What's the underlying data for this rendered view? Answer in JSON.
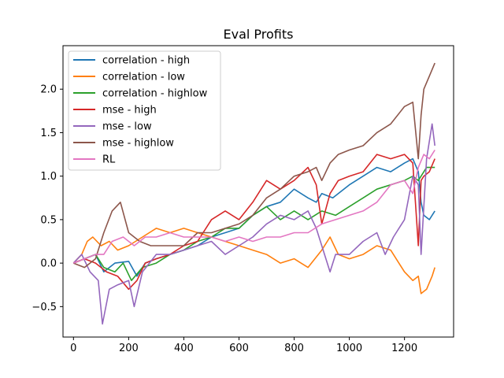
{
  "chart_data": {
    "type": "line",
    "title": "Eval Profits",
    "xlabel": "",
    "ylabel": "",
    "xlim": [
      -38,
      1378
    ],
    "ylim": [
      -0.85,
      2.5
    ],
    "grid": false,
    "legend_position": "upper-left",
    "x_ticks": [
      0,
      200,
      400,
      600,
      800,
      1000,
      1200
    ],
    "x_tick_labels": [
      "0",
      "200",
      "400",
      "600",
      "800",
      "1000",
      "1200"
    ],
    "y_ticks": [
      -0.5,
      0.0,
      0.5,
      1.0,
      1.5,
      2.0
    ],
    "y_tick_labels": [
      "−0.5",
      "0.0",
      "0.5",
      "1.0",
      "1.5",
      "2.0"
    ],
    "series": [
      {
        "name": "correlation - high",
        "color": "#1f77b4",
        "x": [
          0,
          40,
          80,
          110,
          150,
          200,
          230,
          260,
          300,
          350,
          400,
          450,
          500,
          550,
          600,
          650,
          700,
          750,
          800,
          850,
          880,
          900,
          940,
          1000,
          1050,
          1100,
          1150,
          1200,
          1230,
          1250,
          1260,
          1270,
          1290,
          1310
        ],
        "y": [
          0.0,
          0.05,
          0.1,
          -0.1,
          0.0,
          0.02,
          -0.15,
          0.0,
          0.05,
          0.1,
          0.15,
          0.2,
          0.3,
          0.35,
          0.4,
          0.55,
          0.65,
          0.7,
          0.85,
          0.75,
          0.7,
          0.8,
          0.75,
          0.9,
          1.0,
          1.1,
          1.05,
          1.15,
          1.2,
          1.05,
          0.7,
          0.55,
          0.5,
          0.6
        ]
      },
      {
        "name": "correlation - low",
        "color": "#ff7f0e",
        "x": [
          0,
          30,
          50,
          70,
          100,
          130,
          160,
          200,
          250,
          300,
          350,
          400,
          450,
          500,
          550,
          600,
          650,
          700,
          750,
          800,
          850,
          900,
          930,
          960,
          1000,
          1050,
          1100,
          1150,
          1200,
          1230,
          1250,
          1260,
          1280,
          1300,
          1310
        ],
        "y": [
          0.0,
          0.1,
          0.25,
          0.3,
          0.2,
          0.25,
          0.15,
          0.2,
          0.3,
          0.4,
          0.35,
          0.4,
          0.35,
          0.3,
          0.25,
          0.2,
          0.15,
          0.1,
          0.0,
          0.05,
          -0.05,
          0.15,
          0.3,
          0.1,
          0.05,
          0.1,
          0.2,
          0.15,
          -0.1,
          -0.2,
          -0.15,
          -0.35,
          -0.3,
          -0.15,
          -0.05
        ]
      },
      {
        "name": "correlation - highlow",
        "color": "#2ca02c",
        "x": [
          0,
          40,
          80,
          110,
          150,
          180,
          210,
          250,
          300,
          350,
          400,
          450,
          500,
          550,
          600,
          650,
          700,
          750,
          800,
          850,
          900,
          950,
          1000,
          1050,
          1100,
          1150,
          1200,
          1230,
          1250,
          1260,
          1280,
          1310
        ],
        "y": [
          0.0,
          0.05,
          0.1,
          -0.05,
          -0.1,
          0.0,
          -0.2,
          -0.05,
          0.0,
          0.1,
          0.15,
          0.25,
          0.3,
          0.4,
          0.4,
          0.55,
          0.65,
          0.5,
          0.6,
          0.5,
          0.6,
          0.55,
          0.65,
          0.75,
          0.85,
          0.9,
          0.95,
          1.0,
          0.95,
          1.0,
          1.1,
          1.1
        ]
      },
      {
        "name": "mse - high",
        "color": "#d62728",
        "x": [
          0,
          40,
          80,
          120,
          160,
          200,
          230,
          260,
          300,
          350,
          400,
          450,
          500,
          550,
          600,
          650,
          700,
          750,
          800,
          850,
          880,
          900,
          930,
          960,
          1000,
          1050,
          1100,
          1150,
          1200,
          1230,
          1250,
          1260,
          1270,
          1290,
          1310
        ],
        "y": [
          0.0,
          0.05,
          0.0,
          -0.1,
          -0.15,
          -0.3,
          -0.2,
          0.0,
          0.05,
          0.1,
          0.2,
          0.25,
          0.5,
          0.6,
          0.5,
          0.7,
          0.95,
          0.85,
          0.95,
          1.1,
          0.9,
          0.45,
          0.8,
          0.95,
          1.0,
          1.05,
          1.25,
          1.2,
          1.25,
          1.15,
          0.2,
          0.95,
          1.0,
          1.05,
          1.2
        ]
      },
      {
        "name": "mse - low",
        "color": "#9467bd",
        "x": [
          0,
          30,
          60,
          90,
          105,
          130,
          160,
          200,
          220,
          250,
          300,
          350,
          400,
          450,
          500,
          550,
          600,
          650,
          700,
          750,
          800,
          850,
          880,
          900,
          930,
          950,
          1000,
          1050,
          1100,
          1130,
          1160,
          1200,
          1230,
          1250,
          1260,
          1280,
          1300,
          1310
        ],
        "y": [
          0.0,
          0.1,
          -0.1,
          -0.2,
          -0.7,
          -0.3,
          -0.25,
          -0.2,
          -0.5,
          -0.1,
          0.1,
          0.1,
          0.15,
          0.2,
          0.25,
          0.1,
          0.2,
          0.3,
          0.45,
          0.55,
          0.5,
          0.6,
          0.4,
          0.2,
          -0.1,
          0.1,
          0.1,
          0.25,
          0.35,
          0.1,
          0.3,
          0.5,
          1.0,
          0.9,
          0.1,
          1.2,
          1.6,
          1.35
        ]
      },
      {
        "name": "mse - highlow",
        "color": "#8c564b",
        "x": [
          0,
          40,
          80,
          110,
          140,
          170,
          200,
          240,
          280,
          320,
          360,
          400,
          450,
          500,
          550,
          600,
          650,
          700,
          750,
          800,
          850,
          880,
          900,
          930,
          960,
          1000,
          1050,
          1100,
          1150,
          1200,
          1230,
          1250,
          1260,
          1270,
          1290,
          1310
        ],
        "y": [
          0.0,
          -0.05,
          0.05,
          0.35,
          0.6,
          0.7,
          0.35,
          0.25,
          0.2,
          0.2,
          0.2,
          0.2,
          0.35,
          0.35,
          0.4,
          0.45,
          0.55,
          0.75,
          0.85,
          1.0,
          1.05,
          1.1,
          0.95,
          1.15,
          1.25,
          1.3,
          1.35,
          1.5,
          1.6,
          1.8,
          1.85,
          1.2,
          1.7,
          2.0,
          2.15,
          2.3
        ]
      },
      {
        "name": "RL",
        "color": "#e377c2",
        "x": [
          0,
          40,
          80,
          110,
          140,
          180,
          220,
          260,
          300,
          350,
          400,
          450,
          500,
          550,
          600,
          650,
          700,
          750,
          800,
          850,
          900,
          950,
          1000,
          1050,
          1100,
          1150,
          1200,
          1230,
          1250,
          1270,
          1290,
          1310
        ],
        "y": [
          0.0,
          0.05,
          0.1,
          0.1,
          0.25,
          0.3,
          0.2,
          0.3,
          0.3,
          0.35,
          0.3,
          0.3,
          0.3,
          0.25,
          0.3,
          0.25,
          0.3,
          0.3,
          0.35,
          0.35,
          0.45,
          0.5,
          0.55,
          0.6,
          0.7,
          0.9,
          0.95,
          0.8,
          1.1,
          1.25,
          1.2,
          1.3
        ]
      }
    ]
  }
}
